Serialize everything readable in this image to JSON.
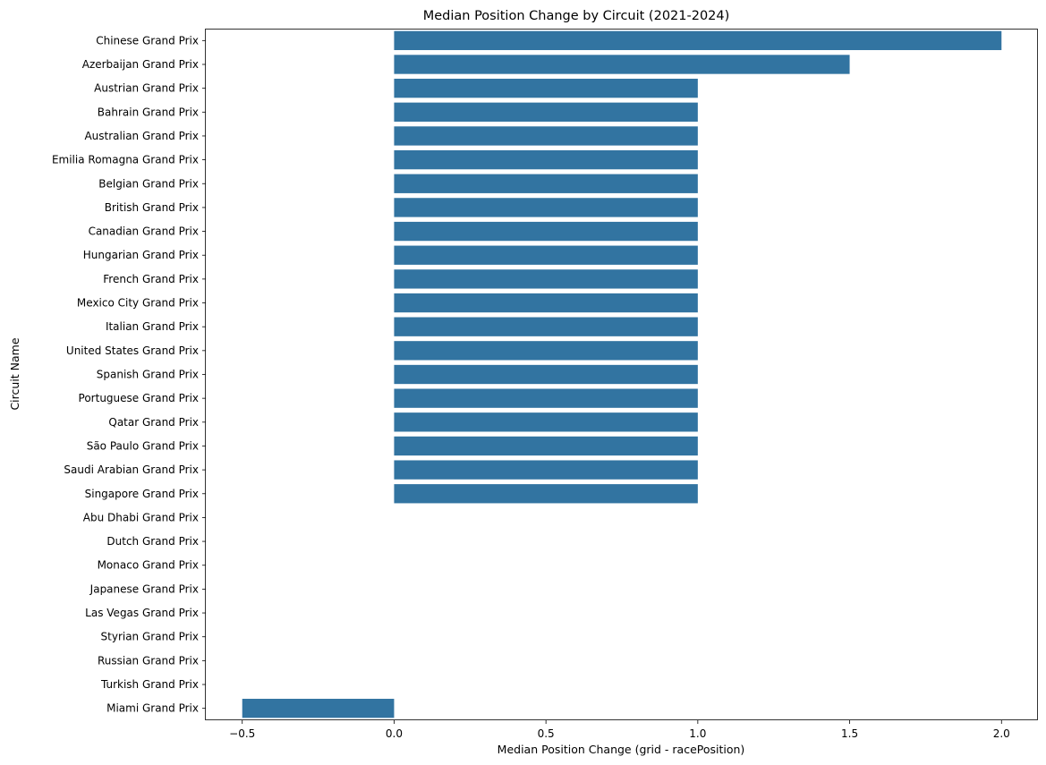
{
  "chart_data": {
    "type": "bar",
    "orientation": "horizontal",
    "title": "Median Position Change by Circuit (2021-2024)",
    "xlabel": "Median Position Change (grid - racePosition)",
    "ylabel": "Circuit Name",
    "xlim": [
      -0.62,
      2.12
    ],
    "xticks": [
      -0.5,
      0.0,
      0.5,
      1.0,
      1.5,
      2.0
    ],
    "xtick_labels": [
      "−0.5",
      "0.0",
      "0.5",
      "1.0",
      "1.5",
      "2.0"
    ],
    "grid": false,
    "bar_color": "#3274a1",
    "categories": [
      "Chinese Grand Prix",
      "Azerbaijan Grand Prix",
      "Austrian Grand Prix",
      "Bahrain Grand Prix",
      "Australian Grand Prix",
      "Emilia Romagna Grand Prix",
      "Belgian Grand Prix",
      "British Grand Prix",
      "Canadian Grand Prix",
      "Hungarian Grand Prix",
      "French Grand Prix",
      "Mexico City Grand Prix",
      "Italian Grand Prix",
      "United States Grand Prix",
      "Spanish Grand Prix",
      "Portuguese Grand Prix",
      "Qatar Grand Prix",
      "São Paulo Grand Prix",
      "Saudi Arabian Grand Prix",
      "Singapore Grand Prix",
      "Abu Dhabi Grand Prix",
      "Dutch Grand Prix",
      "Monaco Grand Prix",
      "Japanese Grand Prix",
      "Las Vegas Grand Prix",
      "Styrian Grand Prix",
      "Russian Grand Prix",
      "Turkish Grand Prix",
      "Miami Grand Prix"
    ],
    "values": [
      2.0,
      1.5,
      1.0,
      1.0,
      1.0,
      1.0,
      1.0,
      1.0,
      1.0,
      1.0,
      1.0,
      1.0,
      1.0,
      1.0,
      1.0,
      1.0,
      1.0,
      1.0,
      1.0,
      1.0,
      0.0,
      0.0,
      0.0,
      0.0,
      0.0,
      0.0,
      0.0,
      0.0,
      -0.5
    ]
  }
}
